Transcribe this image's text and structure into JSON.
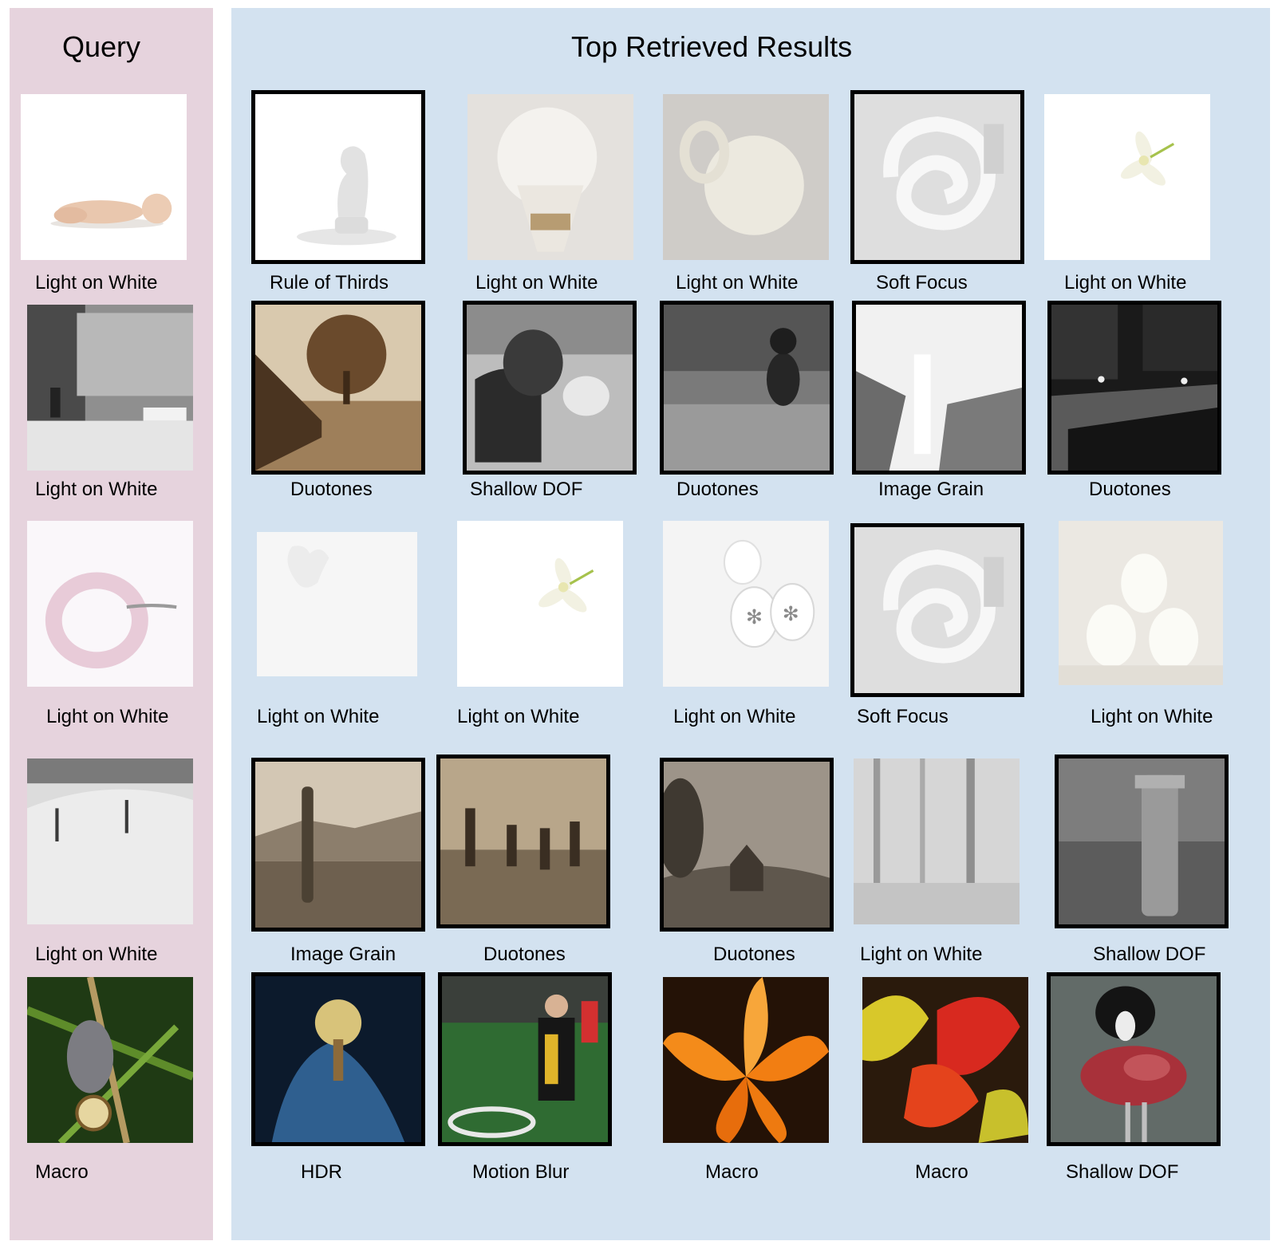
{
  "query_heading": "Query",
  "results_heading": "Top Retrieved Results",
  "rows": [
    {
      "query": {
        "label": "Light on White",
        "icon": "sleeping-baby"
      },
      "results": [
        {
          "label": "Rule of Thirds",
          "icon": "chess-knight",
          "highlighted": true
        },
        {
          "label": "Light on White",
          "icon": "melting-bulb",
          "highlighted": false
        },
        {
          "label": "Light on White",
          "icon": "white-pitcher",
          "highlighted": false
        },
        {
          "label": "Soft Focus",
          "icon": "spiral-bulb",
          "highlighted": true
        },
        {
          "label": "Light on White",
          "icon": "white-flower",
          "highlighted": false
        }
      ]
    },
    {
      "query": {
        "label": "Light on White",
        "icon": "snowy-street"
      },
      "results": [
        {
          "label": "Duotones",
          "icon": "tree-fence",
          "highlighted": true
        },
        {
          "label": "Shallow DOF",
          "icon": "person-bench",
          "highlighted": true
        },
        {
          "label": "Duotones",
          "icon": "dog-garden",
          "highlighted": true
        },
        {
          "label": "Image Grain",
          "icon": "snowy-waterfall",
          "highlighted": true
        },
        {
          "label": "Duotones",
          "icon": "night-street",
          "highlighted": true
        }
      ]
    },
    {
      "query": {
        "label": "Light on White",
        "icon": "pearl-necklace"
      },
      "results": [
        {
          "label": "Light on White",
          "icon": "white-apple-logo",
          "highlighted": false
        },
        {
          "label": "Light on White",
          "icon": "white-flower",
          "highlighted": false
        },
        {
          "label": "Light on White",
          "icon": "snowflake-ornaments",
          "highlighted": false
        },
        {
          "label": "Soft Focus",
          "icon": "spiral-bulb",
          "highlighted": true
        },
        {
          "label": "Light on White",
          "icon": "white-eggs",
          "highlighted": false
        }
      ]
    },
    {
      "query": {
        "label": "Light on White",
        "icon": "snowy-hillside"
      },
      "results": [
        {
          "label": "Image Grain",
          "icon": "desert-cactus",
          "highlighted": true
        },
        {
          "label": "Duotones",
          "icon": "battle-reenactment",
          "highlighted": true
        },
        {
          "label": "Duotones",
          "icon": "fisheye-barn",
          "highlighted": true
        },
        {
          "label": "Light on White",
          "icon": "foggy-forest",
          "highlighted": false
        },
        {
          "label": "Shallow DOF",
          "icon": "fire-hydrant",
          "highlighted": true
        }
      ]
    },
    {
      "query": {
        "label": "Macro",
        "icon": "moth-on-stem"
      },
      "results": [
        {
          "label": "HDR",
          "icon": "hdr-flower",
          "highlighted": true
        },
        {
          "label": "Motion Blur",
          "icon": "rugby-player",
          "highlighted": true
        },
        {
          "label": "Macro",
          "icon": "orange-lily",
          "highlighted": false
        },
        {
          "label": "Macro",
          "icon": "autumn-leaves",
          "highlighted": false
        },
        {
          "label": "Shallow DOF",
          "icon": "dog-and-meat",
          "highlighted": true
        }
      ]
    }
  ]
}
